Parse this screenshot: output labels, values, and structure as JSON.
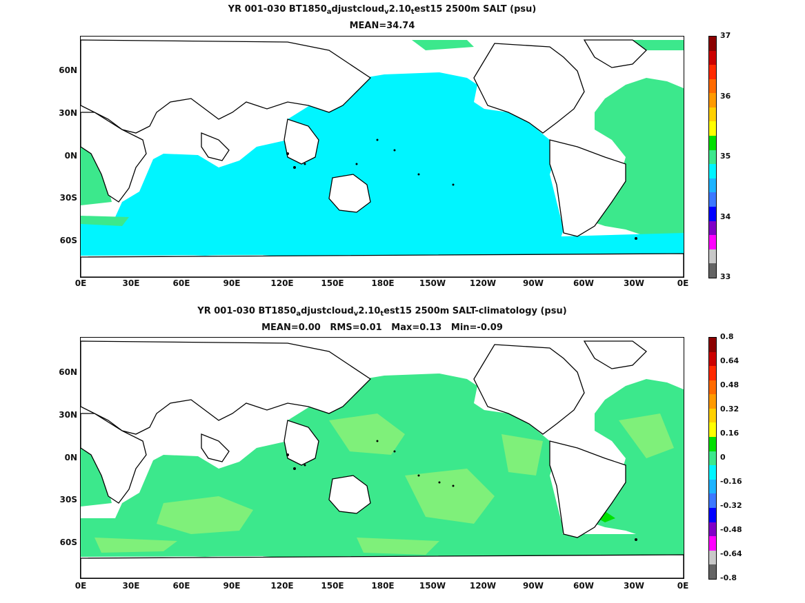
{
  "panels": [
    {
      "title_parts": [
        "YR 001-030 BT1850",
        "a",
        "djustcloud",
        "v",
        "2.10",
        "t",
        "est15 2500m SALT (psu)"
      ],
      "subtitle": "MEAN=34.74",
      "field_color": "#00f5ff",
      "atlantic_color": "#3ce88c",
      "colorbar": {
        "labels": [
          "37",
          "36",
          "35",
          "34",
          "33"
        ],
        "colors": [
          "#8b0000",
          "#cc0000",
          "#ff2a00",
          "#ff6a00",
          "#ff9a00",
          "#ffd000",
          "#ffff00",
          "#00e000",
          "#3ce88c",
          "#00f5ff",
          "#1eb4ff",
          "#3c78ff",
          "#0000ff",
          "#8000c8",
          "#ff00ff",
          "#c8c8c8",
          "#646464"
        ]
      }
    },
    {
      "title_parts": [
        "YR 001-030 BT1850",
        "a",
        "djustcloud",
        "v",
        "2.10",
        "t",
        "est15 2500m SALT-climatology (psu)"
      ],
      "subtitle": "MEAN=0.00   RMS=0.01   Max=0.13   Min=-0.09",
      "field_color": "#3ce88c",
      "secondary_color": "#7ff07a",
      "colorbar": {
        "labels": [
          "0.8",
          "0.64",
          "0.48",
          "0.32",
          "0.16",
          "0",
          "-0.16",
          "-0.32",
          "-0.48",
          "-0.64",
          "-0.8"
        ],
        "colors": [
          "#8b0000",
          "#cc0000",
          "#ff2a00",
          "#ff6a00",
          "#ff9a00",
          "#ffd000",
          "#ffff00",
          "#00e000",
          "#3ce88c",
          "#00f5ff",
          "#1eb4ff",
          "#3c78ff",
          "#0000ff",
          "#8000c8",
          "#ff00ff",
          "#c8c8c8",
          "#646464"
        ]
      }
    }
  ],
  "x_ticks": [
    "0E",
    "30E",
    "60E",
    "90E",
    "120E",
    "150E",
    "180E",
    "150W",
    "120W",
    "90W",
    "60W",
    "30W",
    "0E"
  ],
  "y_ticks": [
    "60N",
    "30N",
    "0N",
    "30S",
    "60S"
  ]
}
